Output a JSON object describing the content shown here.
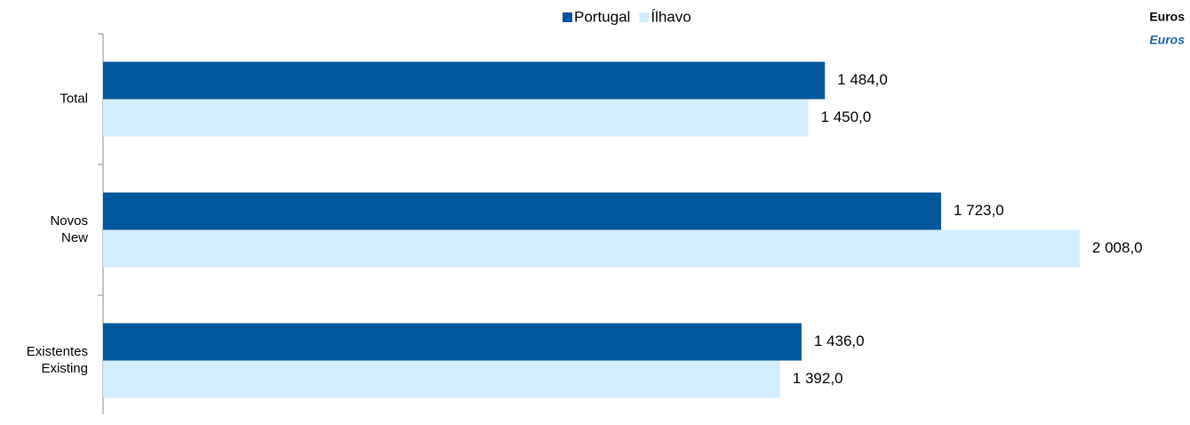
{
  "chart_data": {
    "type": "barh",
    "categories": [
      [
        "Total"
      ],
      [
        "Novos",
        "New"
      ],
      [
        "Existentes",
        "Existing"
      ]
    ],
    "series": [
      {
        "name": "Portugal",
        "color": "#00579c",
        "values": [
          1484.0,
          1723.0,
          1436.0
        ],
        "value_labels": [
          "1 484,0",
          "1 723,0",
          "1 436,0"
        ]
      },
      {
        "name": "Ílhavo",
        "color": "#d4edfc",
        "values": [
          1450.0,
          2008.0,
          1392.0
        ],
        "value_labels": [
          "1 450,0",
          "2 008,0",
          "1 392,0"
        ]
      }
    ],
    "units": {
      "pt": "Euros",
      "en": "Euros"
    },
    "xlim": [
      0,
      2200
    ],
    "legend": "top"
  }
}
